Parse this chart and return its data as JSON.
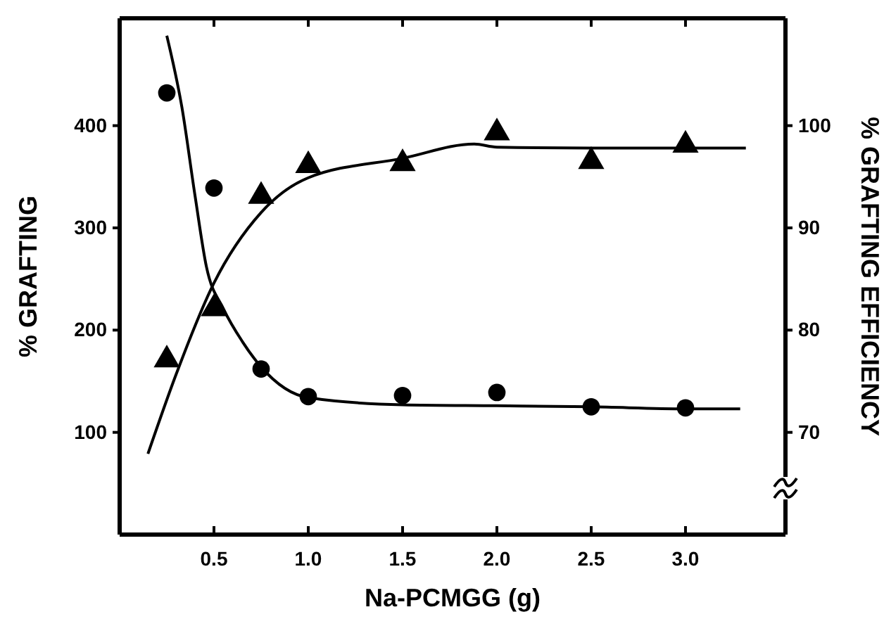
{
  "chart_data": {
    "type": "scatter",
    "xlabel": "Na-PCMGG (g)",
    "ylabel": "% GRAFTING",
    "y2label": "% GRAFTING EFFICIENCY",
    "xlim": [
      0,
      3.53
    ],
    "xticks": [
      0.5,
      {
        "value": 1.0,
        "label": "1.0"
      },
      1.5,
      {
        "value": 2.0,
        "label": "2.0"
      },
      2.5,
      {
        "value": 3.0,
        "label": "3.0"
      }
    ],
    "ylim": [
      0,
      505
    ],
    "yticks": [
      100,
      200,
      300,
      400
    ],
    "y2lim": [
      60,
      110.5
    ],
    "y2ticks": [
      70,
      80,
      90,
      100
    ],
    "series": [
      {
        "type": "scatter",
        "marker": "circle",
        "color": "#000000",
        "x": [
          0.25,
          0.5,
          0.75,
          1.0,
          1.5,
          2.0,
          2.5,
          3.0
        ],
        "values": [
          432,
          339,
          162,
          135,
          136,
          139,
          125,
          124
        ]
      },
      {
        "type": "scatter",
        "marker": "triangle",
        "axis": "y2",
        "color": "#000000",
        "x": [
          0.25,
          0.5,
          0.75,
          1.0,
          1.5,
          2.0,
          2.5,
          3.0
        ],
        "values": [
          77.1,
          82.1,
          93.1,
          96.1,
          96.3,
          99.3,
          96.5,
          98.1
        ]
      },
      {
        "type": "line",
        "marker": "none",
        "color": "#000000",
        "x": [
          0.25,
          0.33,
          0.4,
          0.46,
          0.55,
          0.65,
          0.75,
          1.0,
          1.5,
          2.0,
          2.5,
          3.0,
          3.29
        ],
        "values": [
          488,
          418,
          331,
          262,
          221,
          189,
          164,
          134,
          127,
          126,
          125,
          123,
          123
        ]
      },
      {
        "type": "line",
        "marker": "none",
        "axis": "y2",
        "color": "#000000",
        "x": [
          0.15,
          0.3,
          0.5,
          0.75,
          1.0,
          1.5,
          1.88,
          2.0,
          2.5,
          3.0,
          3.32
        ],
        "values": [
          67.9,
          75.7,
          84.6,
          91.5,
          94.9,
          96.8,
          98.2,
          97.9,
          97.8,
          97.8,
          97.8
        ]
      }
    ]
  }
}
